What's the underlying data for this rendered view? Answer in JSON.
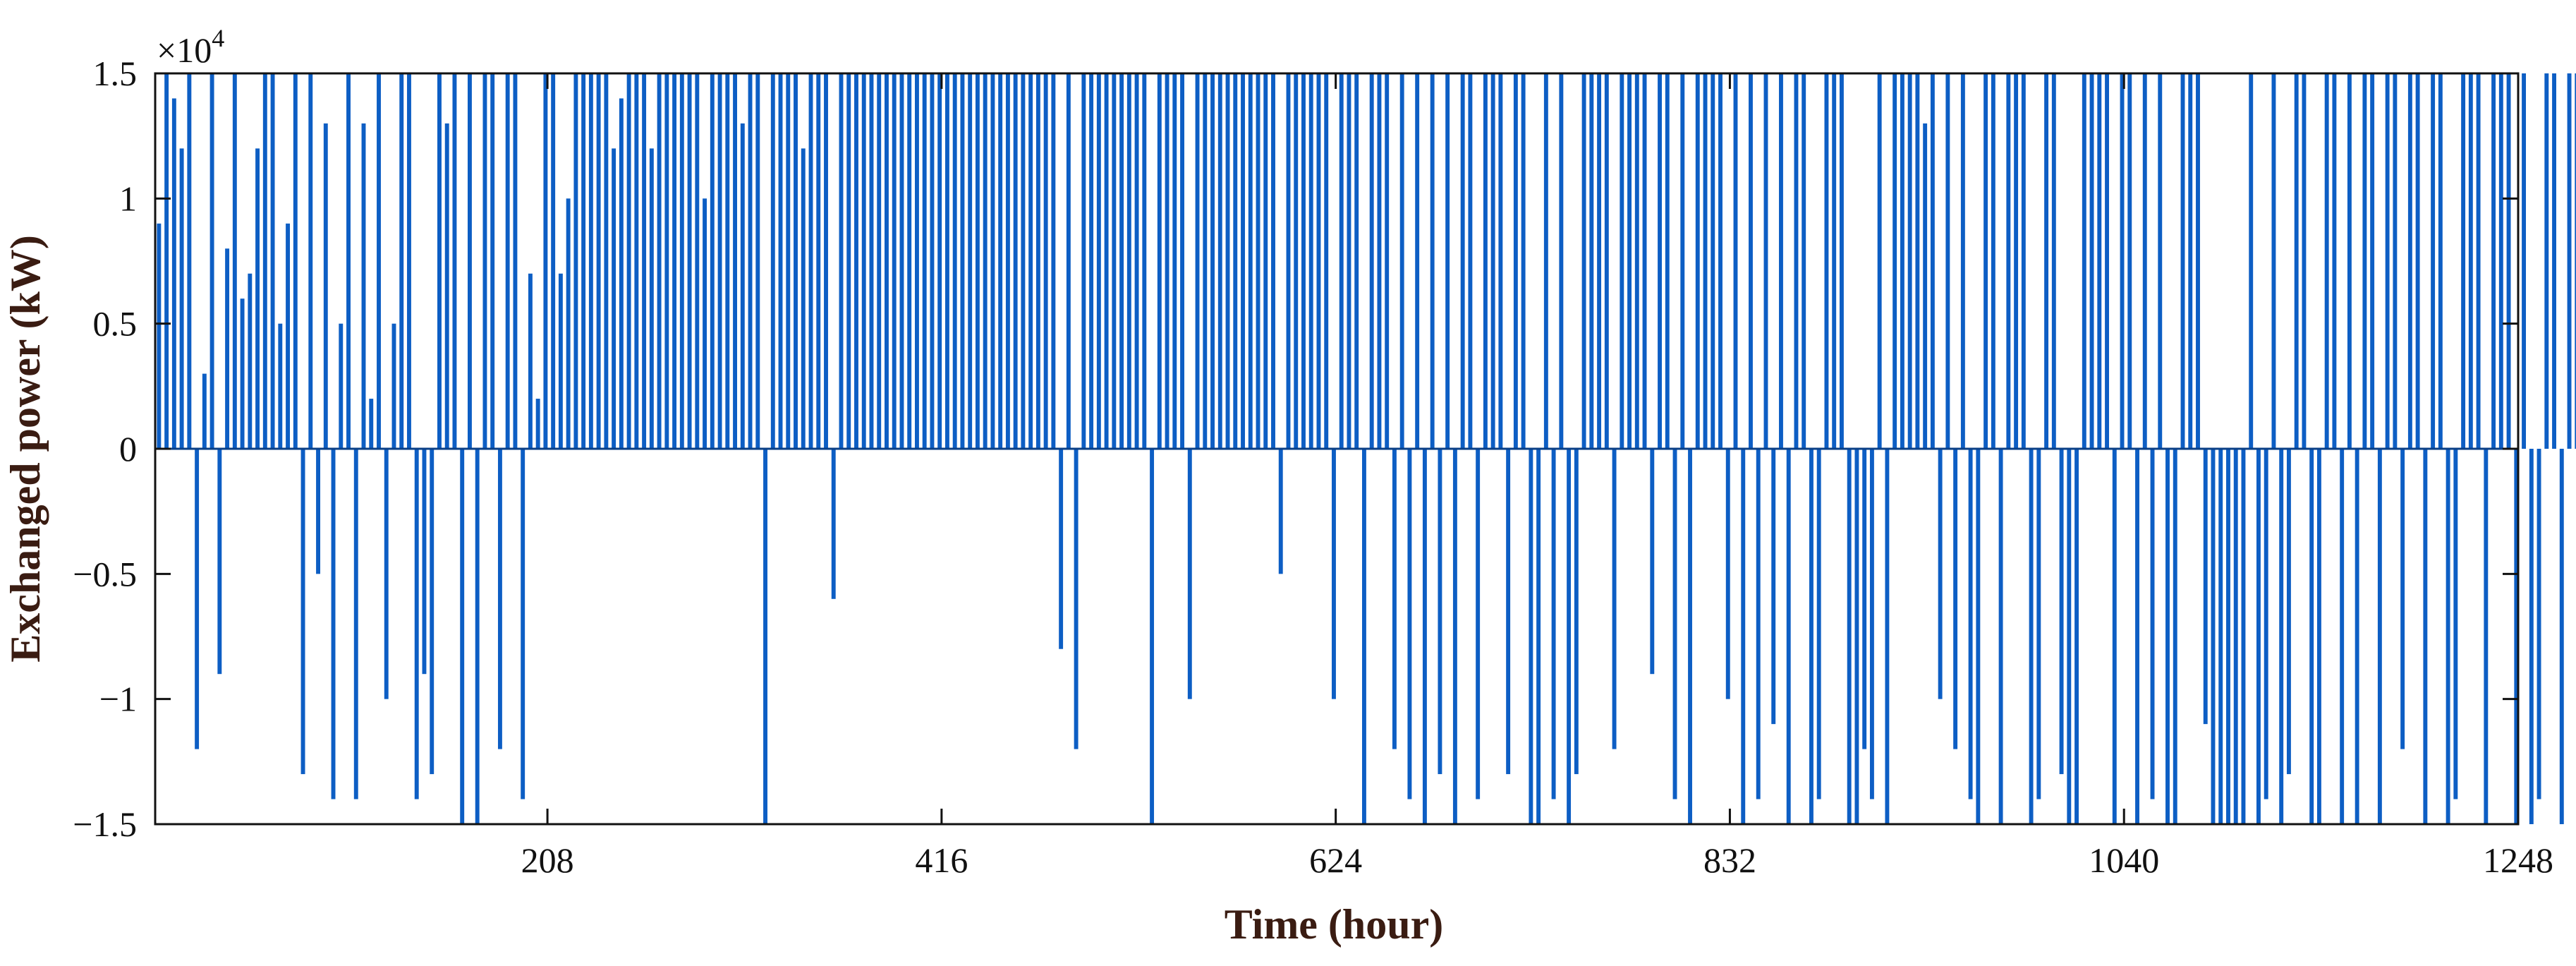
{
  "chart_data": {
    "type": "bar",
    "title": "",
    "xlabel": "Time (hour)",
    "ylabel": "Exchanged power (kW)",
    "xlim": [
      1,
      1248
    ],
    "ylim": [
      -15000,
      15000
    ],
    "y_exponent_label": "×10",
    "y_exponent_power": "4",
    "x_ticks": [
      208,
      416,
      624,
      832,
      1040,
      1248
    ],
    "x_tick_labels": [
      "208",
      "416",
      "624",
      "832",
      "1040",
      "1248"
    ],
    "y_ticks": [
      -15000,
      -10000,
      -5000,
      0,
      5000,
      10000,
      15000
    ],
    "y_tick_labels": [
      "−1.5",
      "−1",
      "−0.5",
      "0",
      "0.5",
      "1",
      "1.5"
    ],
    "grid": false,
    "bar_color": "#0d5ec4",
    "series": [
      {
        "sample_step_hours": 4,
        "values": [
          9000,
          15000,
          14000,
          12000,
          15000,
          -12000,
          3000,
          15000,
          -9000,
          8000,
          15000,
          6000,
          7000,
          12000,
          15000,
          15000,
          5000,
          9000,
          15000,
          -13000,
          15000,
          -5000,
          13000,
          -14000,
          5000,
          15000,
          -14000,
          13000,
          2000,
          15000,
          -10000,
          5000,
          15000,
          15000,
          -14000,
          -9000,
          -13000,
          15000,
          13000,
          15000,
          -15000,
          15000,
          -15000,
          15000,
          15000,
          -12000,
          15000,
          15000,
          -14000,
          7000,
          2000,
          15000,
          15000,
          7000,
          10000,
          15000,
          15000,
          15000,
          15000,
          15000,
          12000,
          14000,
          15000,
          15000,
          15000,
          12000,
          15000,
          15000,
          15000,
          15000,
          15000,
          15000,
          10000,
          15000,
          15000,
          15000,
          15000,
          13000,
          15000,
          15000,
          -15000,
          15000,
          15000,
          15000,
          15000,
          12000,
          15000,
          15000,
          15000,
          -6000,
          15000,
          15000,
          15000,
          15000,
          15000,
          15000,
          15000,
          15000,
          15000,
          15000,
          15000,
          15000,
          15000,
          15000,
          15000,
          15000,
          15000,
          15000,
          15000,
          15000,
          15000,
          15000,
          15000,
          15000,
          15000,
          15000,
          15000,
          15000,
          15000,
          -8000,
          15000,
          -12000,
          15000,
          15000,
          15000,
          15000,
          15000,
          15000,
          15000,
          15000,
          15000,
          -15000,
          15000,
          15000,
          15000,
          15000,
          -10000,
          15000,
          15000,
          15000,
          15000,
          15000,
          15000,
          15000,
          15000,
          15000,
          15000,
          15000,
          -5000,
          15000,
          15000,
          15000,
          15000,
          15000,
          15000,
          -10000,
          15000,
          15000,
          15000,
          -15000,
          15000,
          15000,
          15000,
          -12000,
          15000,
          -14000,
          15000,
          -15000,
          15000,
          -13000,
          15000,
          -15000,
          15000,
          15000,
          -14000,
          15000,
          15000,
          15000,
          -13000,
          15000,
          15000,
          -15000,
          -15000,
          15000,
          -14000,
          15000,
          -15000,
          -13000,
          15000,
          15000,
          15000,
          15000,
          -12000,
          15000,
          15000,
          15000,
          15000,
          -9000,
          15000,
          15000,
          -14000,
          15000,
          -15000,
          15000,
          15000,
          15000,
          15000,
          -10000,
          15000,
          -15000,
          15000,
          -14000,
          15000,
          -11000,
          15000,
          -15000,
          15000,
          15000,
          -15000,
          -14000,
          15000,
          15000,
          15000,
          -15000,
          -15000,
          -12000,
          -14000,
          15000,
          -15000,
          15000,
          15000,
          15000,
          15000,
          13000,
          15000,
          -10000,
          15000,
          -12000,
          15000,
          -14000,
          -15000,
          15000,
          15000,
          -15000,
          15000,
          15000,
          15000,
          -15000,
          -14000,
          15000,
          15000,
          -13000,
          -15000,
          -15000,
          15000,
          15000,
          15000,
          15000,
          -15000,
          15000,
          15000,
          -15000,
          15000,
          -14000,
          15000,
          -15000,
          -15000,
          15000,
          15000,
          15000,
          -11000,
          -15000,
          -15000,
          -15000,
          -15000,
          -15000,
          15000,
          -15000,
          -14000,
          15000,
          -15000,
          -13000,
          15000,
          15000,
          -15000,
          -15000,
          15000,
          15000,
          -15000,
          15000,
          -15000,
          15000,
          15000,
          -15000,
          15000,
          15000,
          -12000,
          15000,
          15000,
          -15000,
          15000,
          15000,
          -15000,
          -14000,
          15000,
          15000,
          15000,
          -15000,
          15000,
          15000,
          15000,
          -15000,
          15000,
          -15000,
          -14000,
          15000,
          15000,
          -15000,
          15000,
          15000,
          15000,
          -15000,
          15000,
          15000,
          -13000,
          15000,
          -15000,
          -15000,
          -15000
        ]
      }
    ]
  }
}
